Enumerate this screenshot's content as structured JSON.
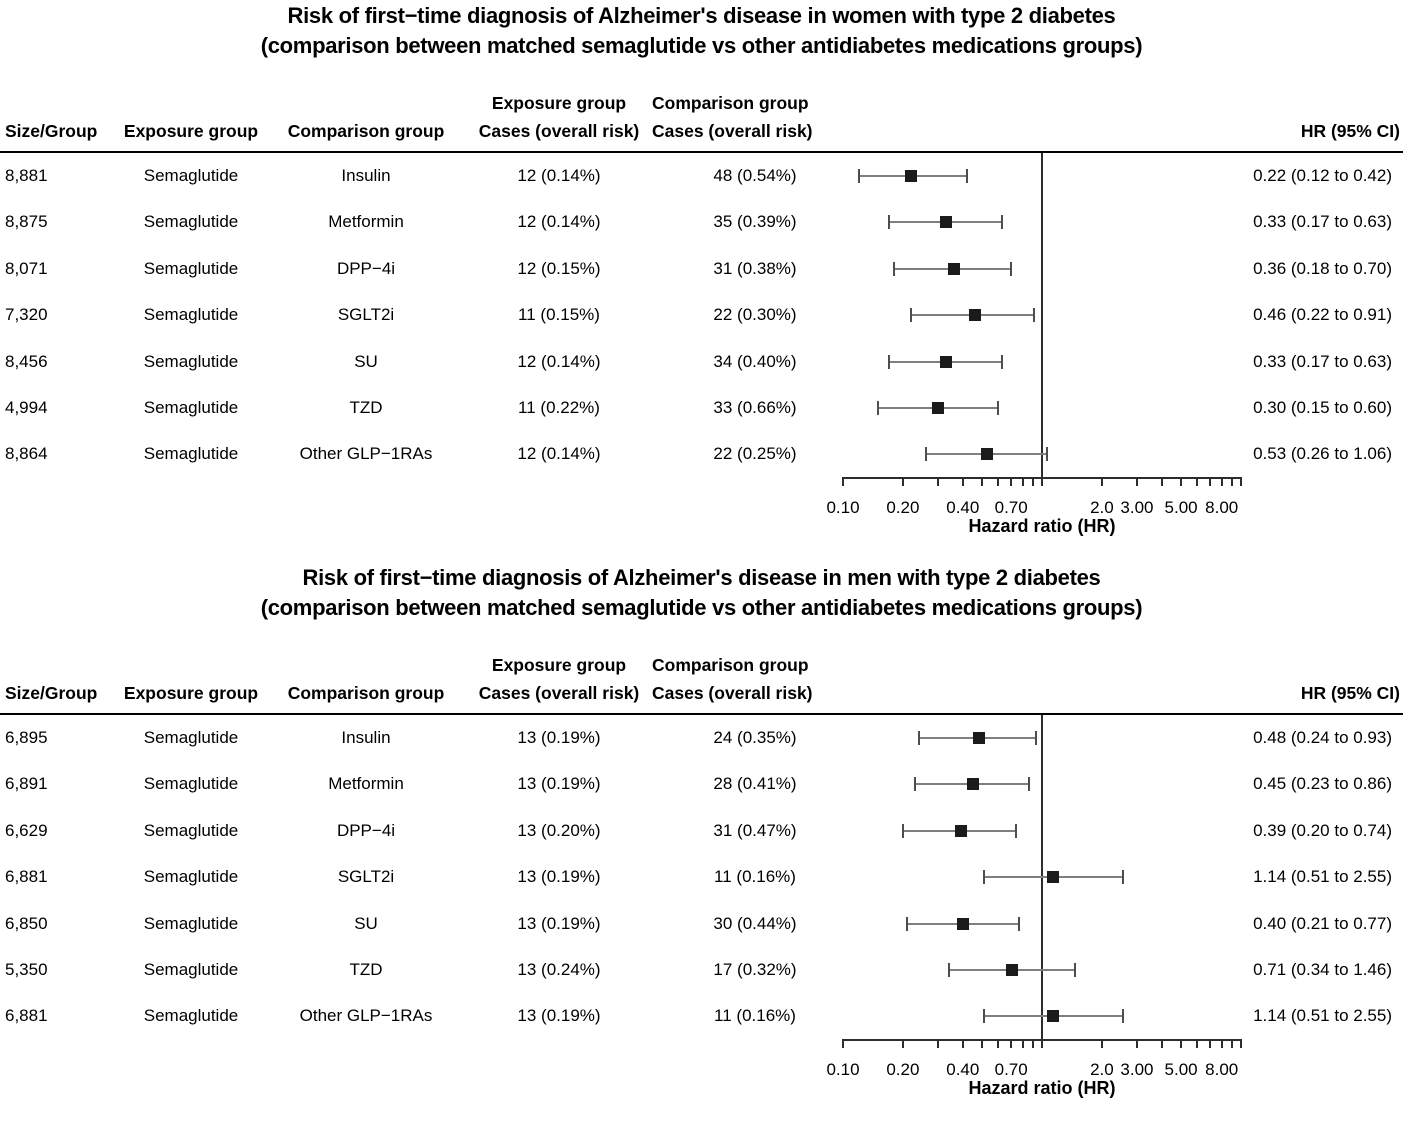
{
  "figure": {
    "columns": {
      "size": "Size/Group",
      "exposure": "Exposure group",
      "comparison": "Comparison group",
      "exposure_cases_line1": "Exposure group",
      "exposure_cases_line2": "Cases (overall risk)",
      "comparison_cases_line1": "Comparison group",
      "comparison_cases_line2": "Cases (overall risk)",
      "hr": "HR (95% CI)"
    },
    "marker_color": "#1b1b1b",
    "ci_line_color": "#7f7f7f",
    "text_color": "#000000"
  },
  "chart_data": [
    {
      "type": "forest",
      "title": "Risk of first−time diagnosis of Alzheimer's disease in women with type 2 diabetes",
      "subtitle": "(comparison between matched semaglutide vs other antidiabetes medications groups)",
      "xlabel": "Hazard ratio (HR)",
      "x_scale": "log",
      "xlim": [
        0.1,
        10
      ],
      "ref_line": 1.0,
      "ticks": [
        {
          "v": 0.1,
          "label": "0.10"
        },
        {
          "v": 0.2,
          "label": "0.20"
        },
        {
          "v": 0.3
        },
        {
          "v": 0.4,
          "label": "0.40"
        },
        {
          "v": 0.5
        },
        {
          "v": 0.6
        },
        {
          "v": 0.7,
          "label": "0.70"
        },
        {
          "v": 0.8
        },
        {
          "v": 0.9
        },
        {
          "v": 1.0
        },
        {
          "v": 2,
          "label": "2.0"
        },
        {
          "v": 3,
          "label": "3.00"
        },
        {
          "v": 4
        },
        {
          "v": 5,
          "label": "5.00"
        },
        {
          "v": 6
        },
        {
          "v": 7
        },
        {
          "v": 8,
          "label": "8.00"
        },
        {
          "v": 9
        },
        {
          "v": 10
        }
      ],
      "rows": [
        {
          "size": "8,881",
          "exposure": "Semaglutide",
          "comparison": "Insulin",
          "exposure_cases": "12 (0.14%)",
          "comparison_cases": "48 (0.54%)",
          "hr": 0.22,
          "ci_low": 0.12,
          "ci_high": 0.42,
          "hr_label": "0.22 (0.12 to 0.42)"
        },
        {
          "size": "8,875",
          "exposure": "Semaglutide",
          "comparison": "Metformin",
          "exposure_cases": "12 (0.14%)",
          "comparison_cases": "35 (0.39%)",
          "hr": 0.33,
          "ci_low": 0.17,
          "ci_high": 0.63,
          "hr_label": "0.33 (0.17 to 0.63)"
        },
        {
          "size": "8,071",
          "exposure": "Semaglutide",
          "comparison": "DPP−4i",
          "exposure_cases": "12 (0.15%)",
          "comparison_cases": "31 (0.38%)",
          "hr": 0.36,
          "ci_low": 0.18,
          "ci_high": 0.7,
          "hr_label": "0.36 (0.18 to 0.70)"
        },
        {
          "size": "7,320",
          "exposure": "Semaglutide",
          "comparison": "SGLT2i",
          "exposure_cases": "11 (0.15%)",
          "comparison_cases": "22 (0.30%)",
          "hr": 0.46,
          "ci_low": 0.22,
          "ci_high": 0.91,
          "hr_label": "0.46 (0.22 to 0.91)"
        },
        {
          "size": "8,456",
          "exposure": "Semaglutide",
          "comparison": "SU",
          "exposure_cases": "12 (0.14%)",
          "comparison_cases": "34 (0.40%)",
          "hr": 0.33,
          "ci_low": 0.17,
          "ci_high": 0.63,
          "hr_label": "0.33 (0.17 to 0.63)"
        },
        {
          "size": "4,994",
          "exposure": "Semaglutide",
          "comparison": "TZD",
          "exposure_cases": "11 (0.22%)",
          "comparison_cases": "33 (0.66%)",
          "hr": 0.3,
          "ci_low": 0.15,
          "ci_high": 0.6,
          "hr_label": "0.30 (0.15 to 0.60)"
        },
        {
          "size": "8,864",
          "exposure": "Semaglutide",
          "comparison": "Other GLP−1RAs",
          "exposure_cases": "12 (0.14%)",
          "comparison_cases": "22 (0.25%)",
          "hr": 0.53,
          "ci_low": 0.26,
          "ci_high": 1.06,
          "hr_label": "0.53 (0.26 to 1.06)"
        }
      ]
    },
    {
      "type": "forest",
      "title": "Risk of first−time diagnosis of Alzheimer's disease in men with type 2 diabetes",
      "subtitle": "(comparison between matched semaglutide vs other antidiabetes medications groups)",
      "xlabel": "Hazard ratio (HR)",
      "x_scale": "log",
      "xlim": [
        0.1,
        10
      ],
      "ref_line": 1.0,
      "ticks": [
        {
          "v": 0.1,
          "label": "0.10"
        },
        {
          "v": 0.2,
          "label": "0.20"
        },
        {
          "v": 0.3
        },
        {
          "v": 0.4,
          "label": "0.40"
        },
        {
          "v": 0.5
        },
        {
          "v": 0.6
        },
        {
          "v": 0.7,
          "label": "0.70"
        },
        {
          "v": 0.8
        },
        {
          "v": 0.9
        },
        {
          "v": 1.0
        },
        {
          "v": 2,
          "label": "2.0"
        },
        {
          "v": 3,
          "label": "3.00"
        },
        {
          "v": 4
        },
        {
          "v": 5,
          "label": "5.00"
        },
        {
          "v": 6
        },
        {
          "v": 7
        },
        {
          "v": 8,
          "label": "8.00"
        },
        {
          "v": 9
        },
        {
          "v": 10
        }
      ],
      "rows": [
        {
          "size": "6,895",
          "exposure": "Semaglutide",
          "comparison": "Insulin",
          "exposure_cases": "13 (0.19%)",
          "comparison_cases": "24 (0.35%)",
          "hr": 0.48,
          "ci_low": 0.24,
          "ci_high": 0.93,
          "hr_label": "0.48 (0.24 to 0.93)"
        },
        {
          "size": "6,891",
          "exposure": "Semaglutide",
          "comparison": "Metformin",
          "exposure_cases": "13 (0.19%)",
          "comparison_cases": "28 (0.41%)",
          "hr": 0.45,
          "ci_low": 0.23,
          "ci_high": 0.86,
          "hr_label": "0.45 (0.23 to 0.86)"
        },
        {
          "size": "6,629",
          "exposure": "Semaglutide",
          "comparison": "DPP−4i",
          "exposure_cases": "13 (0.20%)",
          "comparison_cases": "31 (0.47%)",
          "hr": 0.39,
          "ci_low": 0.2,
          "ci_high": 0.74,
          "hr_label": "0.39 (0.20 to 0.74)"
        },
        {
          "size": "6,881",
          "exposure": "Semaglutide",
          "comparison": "SGLT2i",
          "exposure_cases": "13 (0.19%)",
          "comparison_cases": "11 (0.16%)",
          "hr": 1.14,
          "ci_low": 0.51,
          "ci_high": 2.55,
          "hr_label": "1.14 (0.51 to 2.55)"
        },
        {
          "size": "6,850",
          "exposure": "Semaglutide",
          "comparison": "SU",
          "exposure_cases": "13 (0.19%)",
          "comparison_cases": "30 (0.44%)",
          "hr": 0.4,
          "ci_low": 0.21,
          "ci_high": 0.77,
          "hr_label": "0.40 (0.21 to 0.77)"
        },
        {
          "size": "5,350",
          "exposure": "Semaglutide",
          "comparison": "TZD",
          "exposure_cases": "13 (0.24%)",
          "comparison_cases": "17 (0.32%)",
          "hr": 0.71,
          "ci_low": 0.34,
          "ci_high": 1.46,
          "hr_label": "0.71 (0.34 to 1.46)"
        },
        {
          "size": "6,881",
          "exposure": "Semaglutide",
          "comparison": "Other GLP−1RAs",
          "exposure_cases": "13 (0.19%)",
          "comparison_cases": "11 (0.16%)",
          "hr": 1.14,
          "ci_low": 0.51,
          "ci_high": 2.55,
          "hr_label": "1.14 (0.51 to 2.55)"
        }
      ]
    }
  ]
}
